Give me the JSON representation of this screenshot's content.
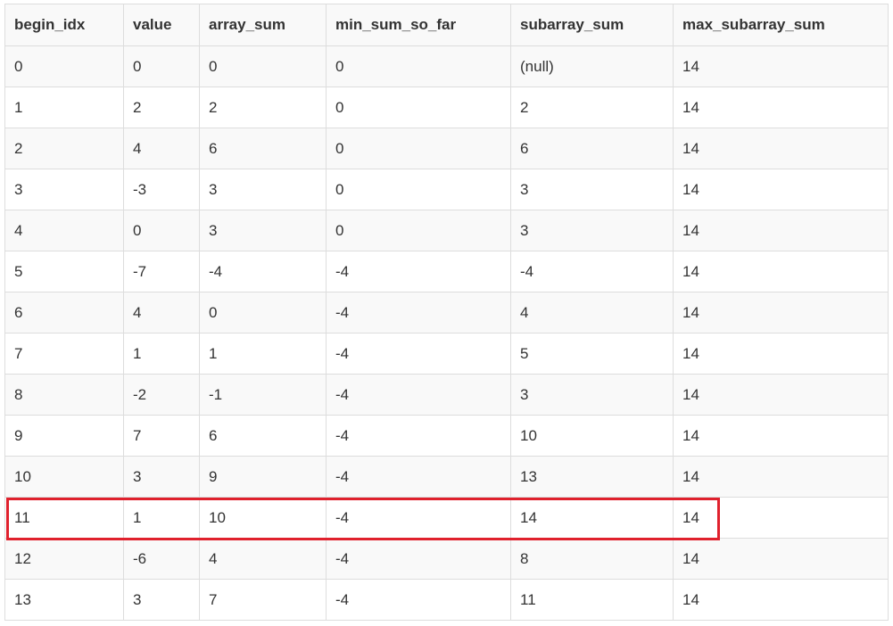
{
  "table": {
    "columns": [
      "begin_idx",
      "value",
      "array_sum",
      "min_sum_so_far",
      "subarray_sum",
      "max_subarray_sum"
    ],
    "rows": [
      [
        "0",
        "0",
        "0",
        "0",
        "(null)",
        "14"
      ],
      [
        "1",
        "2",
        "2",
        "0",
        "2",
        "14"
      ],
      [
        "2",
        "4",
        "6",
        "0",
        "6",
        "14"
      ],
      [
        "3",
        "-3",
        "3",
        "0",
        "3",
        "14"
      ],
      [
        "4",
        "0",
        "3",
        "0",
        "3",
        "14"
      ],
      [
        "5",
        "-7",
        "-4",
        "-4",
        "-4",
        "14"
      ],
      [
        "6",
        "4",
        "0",
        "-4",
        "4",
        "14"
      ],
      [
        "7",
        "1",
        "1",
        "-4",
        "5",
        "14"
      ],
      [
        "8",
        "-2",
        "-1",
        "-4",
        "3",
        "14"
      ],
      [
        "9",
        "7",
        "6",
        "-4",
        "10",
        "14"
      ],
      [
        "10",
        "3",
        "9",
        "-4",
        "13",
        "14"
      ],
      [
        "11",
        "1",
        "10",
        "-4",
        "14",
        "14"
      ],
      [
        "12",
        "-6",
        "4",
        "-4",
        "8",
        "14"
      ],
      [
        "13",
        "3",
        "7",
        "-4",
        "11",
        "14"
      ]
    ],
    "highlighted_row_index": 11
  },
  "colors": {
    "highlight_border": "#e0212d",
    "stripe": "#f9f9f9",
    "grid": "#dddddd",
    "text": "#333333"
  }
}
